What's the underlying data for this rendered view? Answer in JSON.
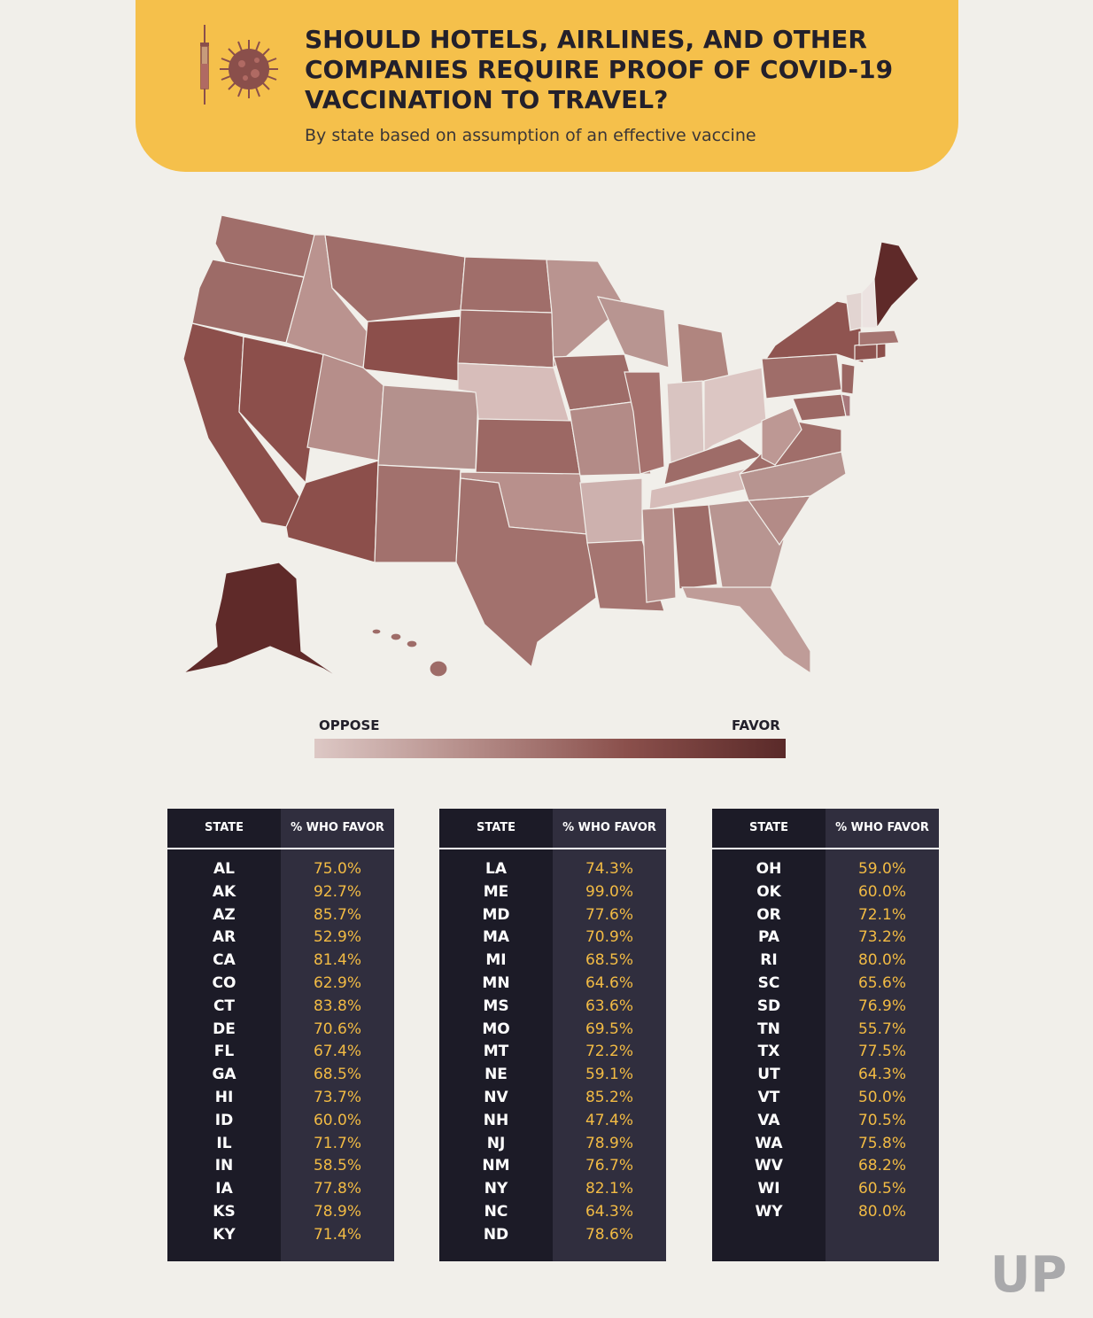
{
  "header": {
    "title": "SHOULD HOTELS, AIRLINES, AND OTHER COMPANIES REQUIRE PROOF OF COVID-19 VACCINATION TO TRAVEL?",
    "subtitle": "By state based on assumption of an effective vaccine",
    "icons": [
      "syringe-icon",
      "virus-icon"
    ]
  },
  "legend": {
    "low_label": "OPPOSE",
    "high_label": "FAVOR",
    "colors": [
      "#ddc8c5",
      "#5a2a29"
    ]
  },
  "table_header": {
    "state": "STATE",
    "favor": "% WHO FAVOR"
  },
  "chart_data": {
    "type": "table",
    "columns": [
      "STATE",
      "% WHO FAVOR"
    ],
    "tables": [
      [
        [
          "AL",
          "75.0%"
        ],
        [
          "AK",
          "92.7%"
        ],
        [
          "AZ",
          "85.7%"
        ],
        [
          "AR",
          "52.9%"
        ],
        [
          "CA",
          "81.4%"
        ],
        [
          "CO",
          "62.9%"
        ],
        [
          "CT",
          "83.8%"
        ],
        [
          "DE",
          "70.6%"
        ],
        [
          "FL",
          "67.4%"
        ],
        [
          "GA",
          "68.5%"
        ],
        [
          "HI",
          "73.7%"
        ],
        [
          "ID",
          "60.0%"
        ],
        [
          "IL",
          "71.7%"
        ],
        [
          "IN",
          "58.5%"
        ],
        [
          "IA",
          "77.8%"
        ],
        [
          "KS",
          "78.9%"
        ],
        [
          "KY",
          "71.4%"
        ]
      ],
      [
        [
          "LA",
          "74.3%"
        ],
        [
          "ME",
          "99.0%"
        ],
        [
          "MD",
          "77.6%"
        ],
        [
          "MA",
          "70.9%"
        ],
        [
          "MI",
          "68.5%"
        ],
        [
          "MN",
          "64.6%"
        ],
        [
          "MS",
          "63.6%"
        ],
        [
          "MO",
          "69.5%"
        ],
        [
          "MT",
          "72.2%"
        ],
        [
          "NE",
          "59.1%"
        ],
        [
          "NV",
          "85.2%"
        ],
        [
          "NH",
          "47.4%"
        ],
        [
          "NJ",
          "78.9%"
        ],
        [
          "NM",
          "76.7%"
        ],
        [
          "NY",
          "82.1%"
        ],
        [
          "NC",
          "64.3%"
        ],
        [
          "ND",
          "78.6%"
        ]
      ],
      [
        [
          "OH",
          "59.0%"
        ],
        [
          "OK",
          "60.0%"
        ],
        [
          "OR",
          "72.1%"
        ],
        [
          "PA",
          "73.2%"
        ],
        [
          "RI",
          "80.0%"
        ],
        [
          "SC",
          "65.6%"
        ],
        [
          "SD",
          "76.9%"
        ],
        [
          "TN",
          "55.7%"
        ],
        [
          "TX",
          "77.5%"
        ],
        [
          "UT",
          "64.3%"
        ],
        [
          "VT",
          "50.0%"
        ],
        [
          "VA",
          "70.5%"
        ],
        [
          "WA",
          "75.8%"
        ],
        [
          "WV",
          "68.2%"
        ],
        [
          "WI",
          "60.5%"
        ],
        [
          "WY",
          "80.0%"
        ]
      ]
    ]
  },
  "logo": {
    "text": "UP",
    "color": "#a9a9ab"
  }
}
